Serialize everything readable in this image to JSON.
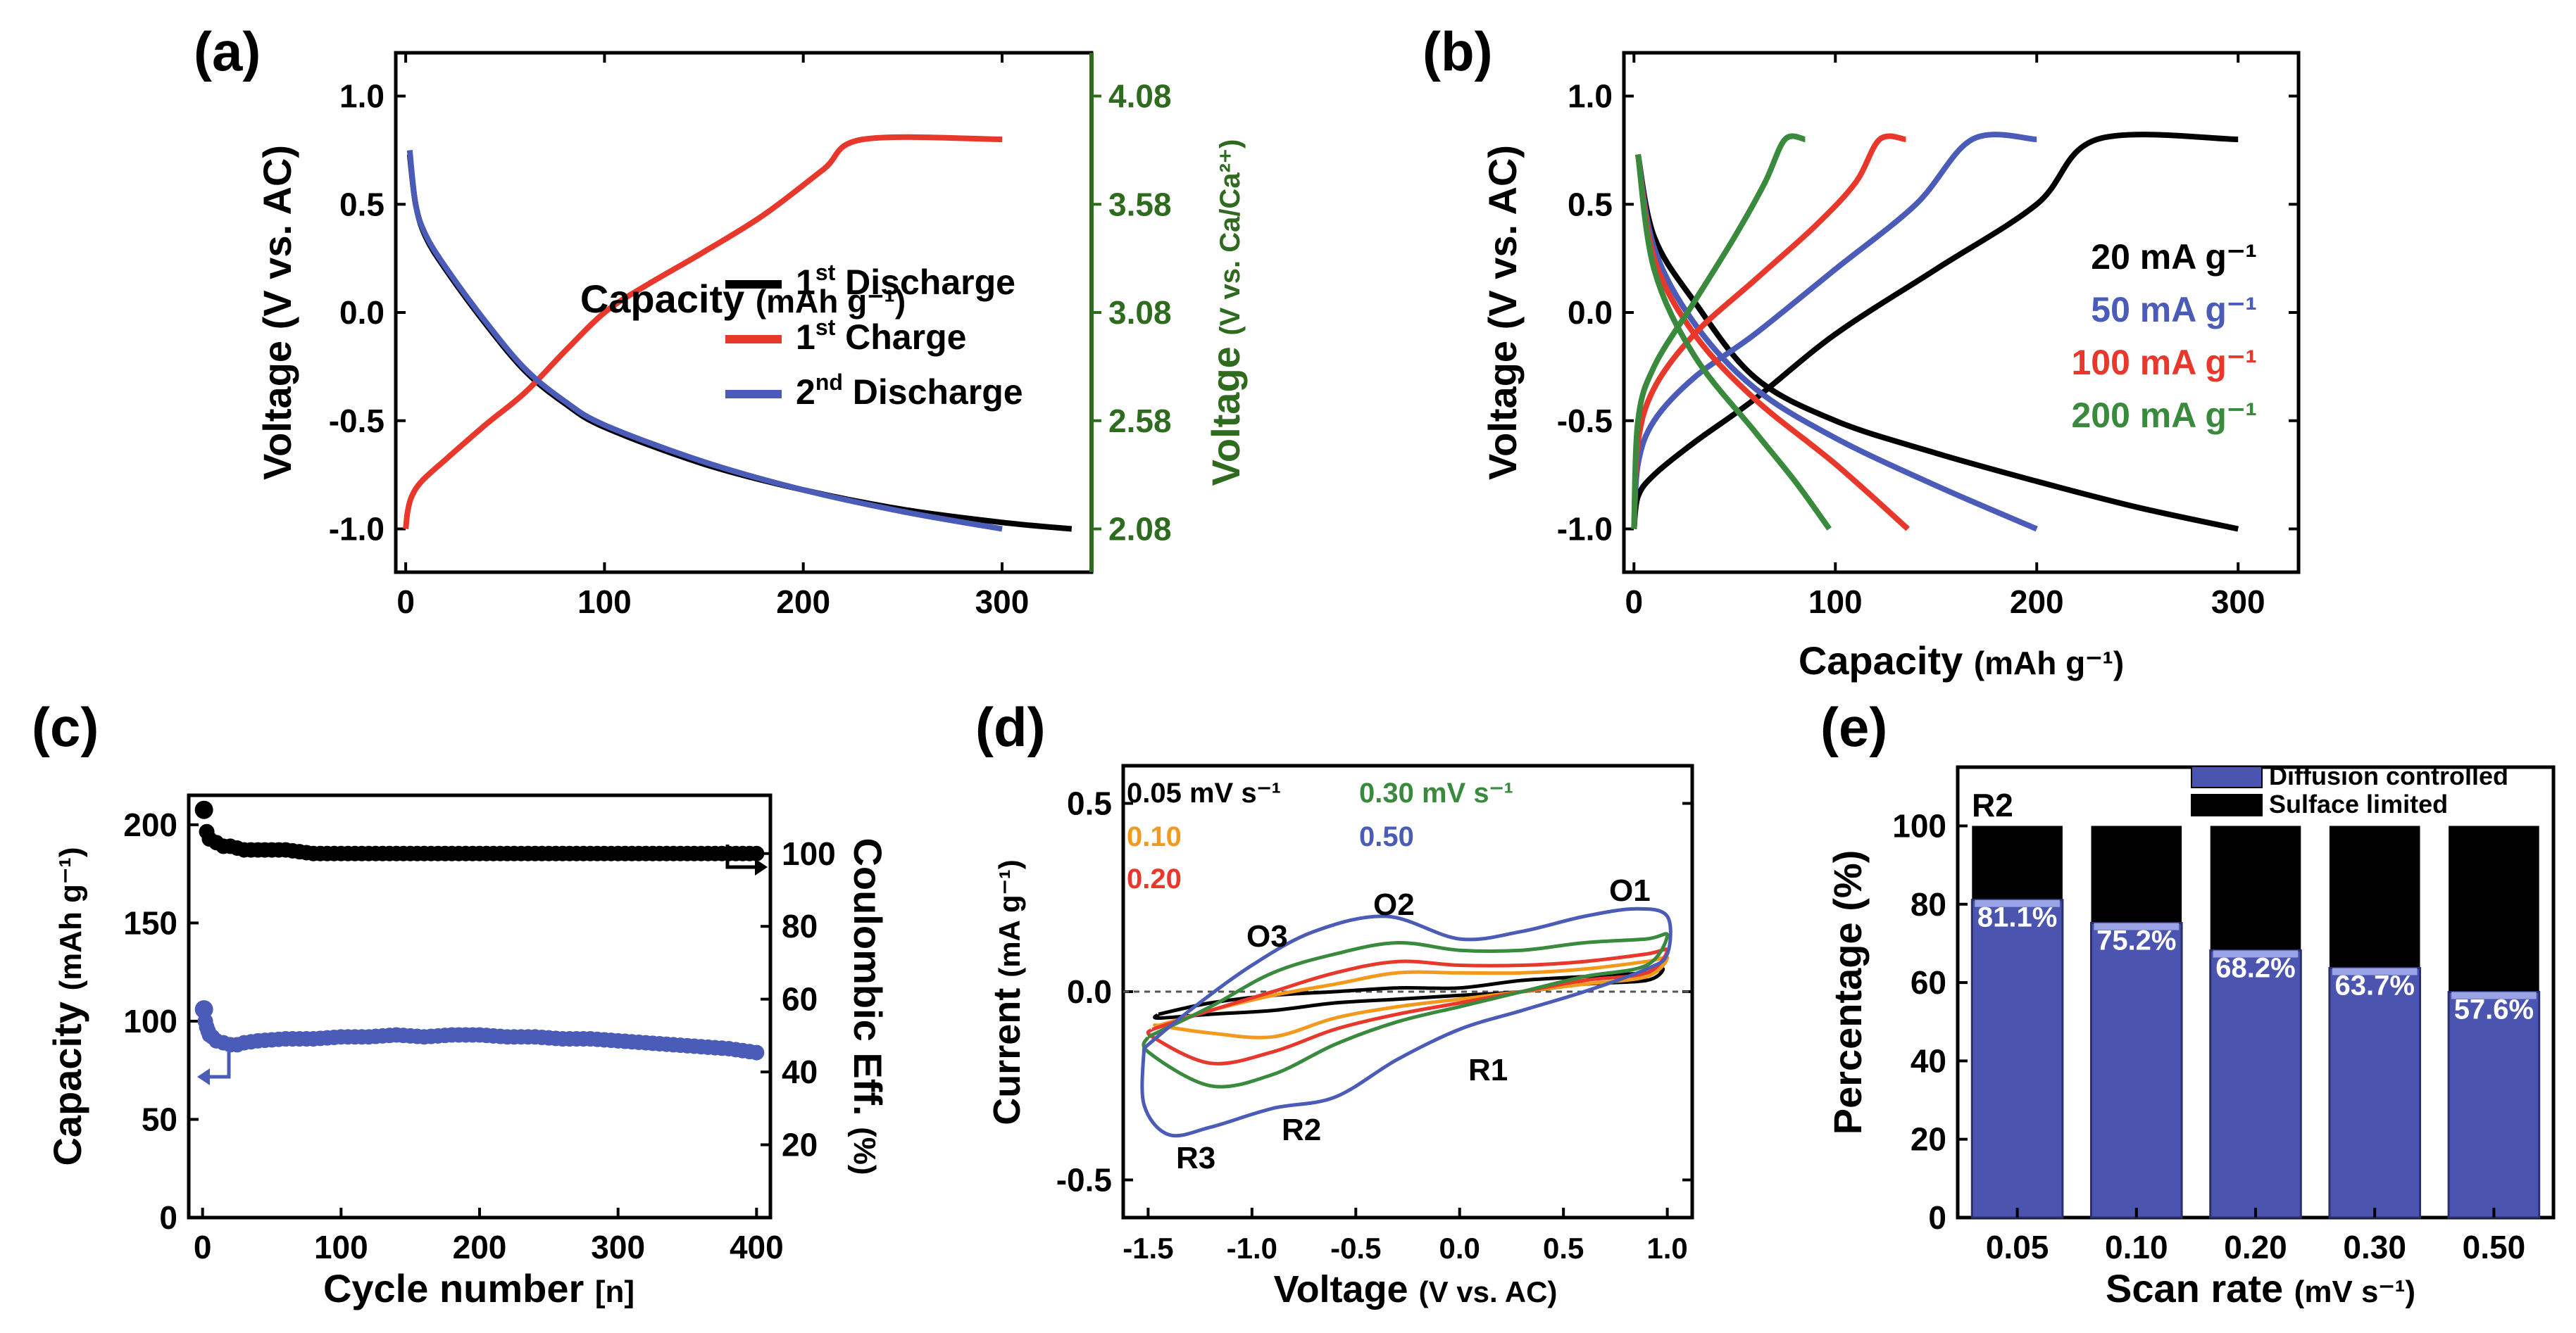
{
  "colors": {
    "black": "#000000",
    "red": "#e8382c",
    "blue": "#4a5bb8",
    "green": "#3a8a3e",
    "orange": "#f39a1e",
    "dark_green": "#2f6b1e",
    "bar_blue": "#4b55b0"
  },
  "chart_data": [
    {
      "panel": "(a)",
      "type": "line",
      "xlabel": "Capacity",
      "xlabel_unit": "(mAh g⁻¹)",
      "ylabel": "Voltage (V vs. AC)",
      "y2label": "Voltage",
      "y2label_unit": "(V vs. Ca/Ca²⁺)",
      "xlim": [
        -5,
        345
      ],
      "ylim": [
        -1.2,
        1.2
      ],
      "xticks": [
        "0",
        "100",
        "200",
        "300"
      ],
      "xtick_values": [
        0,
        100,
        200,
        300
      ],
      "yticks": [
        "-1.0",
        "-0.5",
        "0.0",
        "0.5",
        "1.0"
      ],
      "ytick_values": [
        -1.0,
        -0.5,
        0.0,
        0.5,
        1.0
      ],
      "y2ticks": [
        "2.08",
        "2.58",
        "3.08",
        "3.58",
        "4.08"
      ],
      "legend": [
        {
          "label": "1",
          "sup": "st",
          "rest": " Discharge",
          "color": "#000000"
        },
        {
          "label": "1",
          "sup": "st",
          "rest": " Charge",
          "color": "#e8382c"
        },
        {
          "label": "2",
          "sup": "nd",
          "rest": " Discharge",
          "color": "#4a5bb8"
        }
      ],
      "series": [
        {
          "name": "1st Discharge",
          "color": "#000000",
          "x": [
            2,
            5,
            10,
            20,
            40,
            60,
            80,
            100,
            150,
            200,
            250,
            300,
            335
          ],
          "y": [
            0.73,
            0.5,
            0.35,
            0.2,
            -0.05,
            -0.27,
            -0.42,
            -0.53,
            -0.7,
            -0.82,
            -0.91,
            -0.97,
            -1.0
          ]
        },
        {
          "name": "1st Charge",
          "color": "#e8382c",
          "x": [
            0,
            1,
            3,
            8,
            20,
            40,
            60,
            80,
            100,
            120,
            150,
            180,
            210,
            230,
            300
          ],
          "y": [
            -1.0,
            -0.92,
            -0.85,
            -0.78,
            -0.68,
            -0.52,
            -0.37,
            -0.18,
            0.0,
            0.12,
            0.28,
            0.45,
            0.66,
            0.8,
            0.8
          ]
        },
        {
          "name": "2nd Discharge",
          "color": "#4a5bb8",
          "x": [
            2,
            5,
            10,
            20,
            40,
            60,
            80,
            100,
            150,
            200,
            250,
            300
          ],
          "y": [
            0.75,
            0.5,
            0.36,
            0.21,
            -0.04,
            -0.26,
            -0.41,
            -0.52,
            -0.69,
            -0.82,
            -0.92,
            -1.0
          ]
        }
      ]
    },
    {
      "panel": "(b)",
      "type": "line",
      "xlabel": "Capacity",
      "xlabel_unit": "(mAh g⁻¹)",
      "ylabel": "Voltage (V vs. AC)",
      "xlim": [
        -5,
        330
      ],
      "ylim": [
        -1.2,
        1.2
      ],
      "xticks": [
        "0",
        "100",
        "200",
        "300"
      ],
      "xtick_values": [
        0,
        100,
        200,
        300
      ],
      "yticks": [
        "-1.0",
        "-0.5",
        "0.0",
        "0.5",
        "1.0"
      ],
      "ytick_values": [
        -1.0,
        -0.5,
        0.0,
        0.5,
        1.0
      ],
      "legend": [
        {
          "label": "20 mA g⁻¹",
          "color": "#000000"
        },
        {
          "label": "50 mA g⁻¹",
          "color": "#4a5bb8"
        },
        {
          "label": "100 mA g⁻¹",
          "color": "#e8382c"
        },
        {
          "label": "200 mA g⁻¹",
          "color": "#3a8a3e"
        }
      ],
      "series": [
        {
          "name": "20 mA g⁻¹ discharge",
          "color": "#000000",
          "x": [
            2,
            10,
            30,
            60,
            100,
            150,
            200,
            250,
            300
          ],
          "y": [
            0.73,
            0.35,
            0.05,
            -0.3,
            -0.5,
            -0.65,
            -0.78,
            -0.9,
            -1.0
          ]
        },
        {
          "name": "20 mA g⁻¹ charge",
          "color": "#000000",
          "x": [
            0,
            2,
            10,
            30,
            60,
            100,
            150,
            200,
            230,
            300
          ],
          "y": [
            -1.0,
            -0.85,
            -0.75,
            -0.6,
            -0.4,
            -0.1,
            0.2,
            0.5,
            0.8,
            0.8
          ]
        },
        {
          "name": "50 mA g⁻¹ discharge",
          "color": "#4a5bb8",
          "x": [
            2,
            10,
            30,
            60,
            100,
            150,
            200
          ],
          "y": [
            0.73,
            0.3,
            -0.05,
            -0.35,
            -0.58,
            -0.8,
            -1.0
          ]
        },
        {
          "name": "50 mA g⁻¹ charge",
          "color": "#4a5bb8",
          "x": [
            0,
            2,
            10,
            30,
            60,
            100,
            140,
            168,
            200
          ],
          "y": [
            -1.0,
            -0.7,
            -0.5,
            -0.3,
            -0.1,
            0.2,
            0.5,
            0.8,
            0.8
          ]
        },
        {
          "name": "100 mA g⁻¹ discharge",
          "color": "#e8382c",
          "x": [
            2,
            10,
            30,
            60,
            100,
            136
          ],
          "y": [
            0.73,
            0.25,
            -0.1,
            -0.4,
            -0.7,
            -1.0
          ]
        },
        {
          "name": "100 mA g⁻¹ charge",
          "color": "#e8382c",
          "x": [
            0,
            2,
            10,
            30,
            60,
            90,
            110,
            122,
            135
          ],
          "y": [
            -1.0,
            -0.6,
            -0.35,
            -0.1,
            0.15,
            0.4,
            0.6,
            0.8,
            0.8
          ]
        },
        {
          "name": "200 mA g⁻¹ discharge",
          "color": "#3a8a3e",
          "x": [
            2,
            10,
            30,
            60,
            80,
            97
          ],
          "y": [
            0.73,
            0.2,
            -0.2,
            -0.55,
            -0.78,
            -1.0
          ]
        },
        {
          "name": "200 mA g⁻¹ charge",
          "color": "#3a8a3e",
          "x": [
            0,
            2,
            10,
            30,
            50,
            65,
            75,
            85
          ],
          "y": [
            -1.0,
            -0.5,
            -0.25,
            0.05,
            0.35,
            0.6,
            0.8,
            0.8
          ]
        }
      ]
    },
    {
      "panel": "(c)",
      "type": "scatter",
      "xlabel": "Cycle number",
      "xlabel_unit": "[n]",
      "ylabel": "Capacity",
      "ylabel_unit": "(mAh g⁻¹)",
      "y2label": "Coulombic Eff.",
      "y2label_unit": "(%)",
      "xlim": [
        -10,
        410
      ],
      "ylim": [
        0,
        215
      ],
      "y2lim": [
        0,
        116
      ],
      "xticks": [
        "0",
        "100",
        "200",
        "300",
        "400"
      ],
      "xtick_values": [
        0,
        100,
        200,
        300,
        400
      ],
      "yticks": [
        "0",
        "50",
        "100",
        "150",
        "200"
      ],
      "ytick_values": [
        0,
        50,
        100,
        150,
        200
      ],
      "y2ticks": [
        "20",
        "40",
        "60",
        "80",
        "100"
      ],
      "y2tick_values": [
        20,
        40,
        60,
        80,
        100
      ],
      "series": [
        {
          "name": "Capacity",
          "color": "#4a5bb8",
          "axis": "left",
          "x": [
            1,
            2,
            3,
            4,
            5,
            7,
            10,
            15,
            20,
            25,
            30,
            40,
            60,
            80,
            100,
            120,
            140,
            160,
            180,
            200,
            220,
            240,
            260,
            280,
            300,
            320,
            340,
            360,
            380,
            400
          ],
          "y": [
            106,
            100,
            97,
            95,
            93,
            92,
            90,
            89,
            88,
            88,
            89,
            90,
            91,
            91,
            92,
            92,
            93,
            92,
            93,
            93,
            92,
            92,
            91,
            91,
            90,
            89,
            88,
            87,
            86,
            84
          ]
        },
        {
          "name": "Coulombic Eff.",
          "color": "#000000",
          "axis": "right",
          "x": [
            1,
            3,
            5,
            10,
            15,
            20,
            30,
            40,
            60,
            80,
            100,
            150,
            200,
            250,
            300,
            350,
            400
          ],
          "y": [
            112,
            106,
            104,
            103,
            102,
            102,
            101,
            101,
            101,
            100,
            100,
            100,
            100,
            100,
            100,
            100,
            100
          ]
        }
      ]
    },
    {
      "panel": "(d)",
      "type": "line",
      "xlabel": "Voltage",
      "xlabel_unit": "(V vs. AC)",
      "ylabel": "Current",
      "ylabel_unit": "(mA g⁻¹)",
      "xlim": [
        -1.62,
        1.12
      ],
      "ylim": [
        -0.6,
        0.6
      ],
      "xticks": [
        "-1.5",
        "-1.0",
        "-0.5",
        "0.0",
        "0.5",
        "1.0"
      ],
      "xtick_values": [
        -1.5,
        -1.0,
        -0.5,
        0.0,
        0.5,
        1.0
      ],
      "yticks": [
        "-0.5",
        "0.0",
        "0.5"
      ],
      "ytick_values": [
        -0.5,
        0.0,
        0.5
      ],
      "legend": [
        {
          "label": "0.05 mV s⁻¹",
          "color": "#000000"
        },
        {
          "label": "0.10",
          "color": "#f39a1e"
        },
        {
          "label": "0.20",
          "color": "#e8382c"
        },
        {
          "label": "0.30 mV s⁻¹",
          "color": "#3a8a3e"
        },
        {
          "label": "0.50",
          "color": "#4a5bb8"
        }
      ],
      "annotations": [
        "O1",
        "O2",
        "O3",
        "R1",
        "R2",
        "R3"
      ],
      "series": [
        {
          "name": "0.05",
          "color": "#000000",
          "x": [
            -1.45,
            -1.2,
            -0.9,
            -0.6,
            -0.3,
            0.0,
            0.3,
            0.6,
            0.9,
            0.98,
            0.9,
            0.6,
            0.3,
            0.0,
            -0.3,
            -0.6,
            -0.9,
            -1.2,
            -1.45,
            -1.45
          ],
          "y": [
            -0.06,
            -0.03,
            -0.01,
            0.0,
            0.01,
            0.01,
            0.03,
            0.04,
            0.05,
            0.06,
            0.03,
            0.02,
            0.0,
            -0.01,
            -0.02,
            -0.03,
            -0.05,
            -0.06,
            -0.07,
            -0.06
          ]
        },
        {
          "name": "0.10",
          "color": "#f39a1e",
          "x": [
            -1.45,
            -1.2,
            -0.9,
            -0.6,
            -0.3,
            0.0,
            0.3,
            0.6,
            0.9,
            1.0,
            0.9,
            0.6,
            0.3,
            0.0,
            -0.3,
            -0.6,
            -0.9,
            -1.2,
            -1.45,
            -1.45
          ],
          "y": [
            -0.09,
            -0.05,
            -0.01,
            0.02,
            0.05,
            0.05,
            0.05,
            0.06,
            0.08,
            0.09,
            0.04,
            0.02,
            0.0,
            -0.02,
            -0.04,
            -0.07,
            -0.12,
            -0.11,
            -0.09,
            -0.09
          ]
        },
        {
          "name": "0.20",
          "color": "#e8382c",
          "x": [
            -1.48,
            -1.2,
            -0.9,
            -0.6,
            -0.3,
            0.0,
            0.3,
            0.6,
            0.9,
            1.0,
            0.9,
            0.6,
            0.3,
            0.0,
            -0.3,
            -0.6,
            -0.9,
            -1.2,
            -1.48,
            -1.48
          ],
          "y": [
            -0.1,
            -0.05,
            0.0,
            0.05,
            0.08,
            0.07,
            0.07,
            0.08,
            0.1,
            0.11,
            0.05,
            0.03,
            0.0,
            -0.03,
            -0.06,
            -0.1,
            -0.16,
            -0.19,
            -0.12,
            -0.1
          ]
        },
        {
          "name": "0.30",
          "color": "#3a8a3e",
          "x": [
            -1.5,
            -1.2,
            -0.9,
            -0.6,
            -0.3,
            0.0,
            0.3,
            0.6,
            0.9,
            1.0,
            0.9,
            0.6,
            0.3,
            0.0,
            -0.3,
            -0.6,
            -0.9,
            -1.2,
            -1.5,
            -1.5
          ],
          "y": [
            -0.12,
            -0.04,
            0.05,
            0.1,
            0.13,
            0.11,
            0.11,
            0.13,
            0.14,
            0.15,
            0.07,
            0.04,
            0.0,
            -0.04,
            -0.08,
            -0.14,
            -0.22,
            -0.25,
            -0.16,
            -0.12
          ]
        },
        {
          "name": "0.50",
          "color": "#4a5bb8",
          "x": [
            -1.52,
            -1.3,
            -1.0,
            -0.7,
            -0.35,
            0.0,
            0.3,
            0.6,
            0.85,
            1.0,
            1.0,
            0.9,
            0.6,
            0.3,
            0.0,
            -0.3,
            -0.6,
            -0.9,
            -1.2,
            -1.4,
            -1.52,
            -1.52
          ],
          "y": [
            -0.15,
            -0.05,
            0.07,
            0.16,
            0.2,
            0.14,
            0.16,
            0.2,
            0.22,
            0.2,
            0.1,
            0.06,
            0.0,
            -0.05,
            -0.1,
            -0.18,
            -0.28,
            -0.31,
            -0.36,
            -0.38,
            -0.3,
            -0.15
          ]
        }
      ]
    },
    {
      "panel": "(e)",
      "type": "bar",
      "label": "R2",
      "xlabel": "Scan rate",
      "xlabel_unit": "(mV s⁻¹)",
      "ylabel": "Percentage (%)",
      "categories": [
        "0.05",
        "0.10",
        "0.20",
        "0.30",
        "0.50"
      ],
      "ylim": [
        0,
        115
      ],
      "yticks": [
        "0",
        "20",
        "40",
        "60",
        "80",
        "100"
      ],
      "ytick_values": [
        0,
        20,
        40,
        60,
        80,
        100
      ],
      "legend": [
        {
          "label": "Diffusion controlled",
          "color": "#4b55b0"
        },
        {
          "label": "Sulface limited",
          "color": "#000000"
        }
      ],
      "series": [
        {
          "name": "Diffusion controlled",
          "color": "#4b55b0",
          "values": [
            81.1,
            75.2,
            68.2,
            63.7,
            57.6
          ]
        },
        {
          "name": "Sulface limited",
          "color": "#000000",
          "values": [
            18.9,
            24.8,
            31.8,
            36.3,
            42.4
          ]
        }
      ],
      "data_labels": [
        "81.1%",
        "75.2%",
        "68.2%",
        "63.7%",
        "57.6%"
      ]
    }
  ]
}
